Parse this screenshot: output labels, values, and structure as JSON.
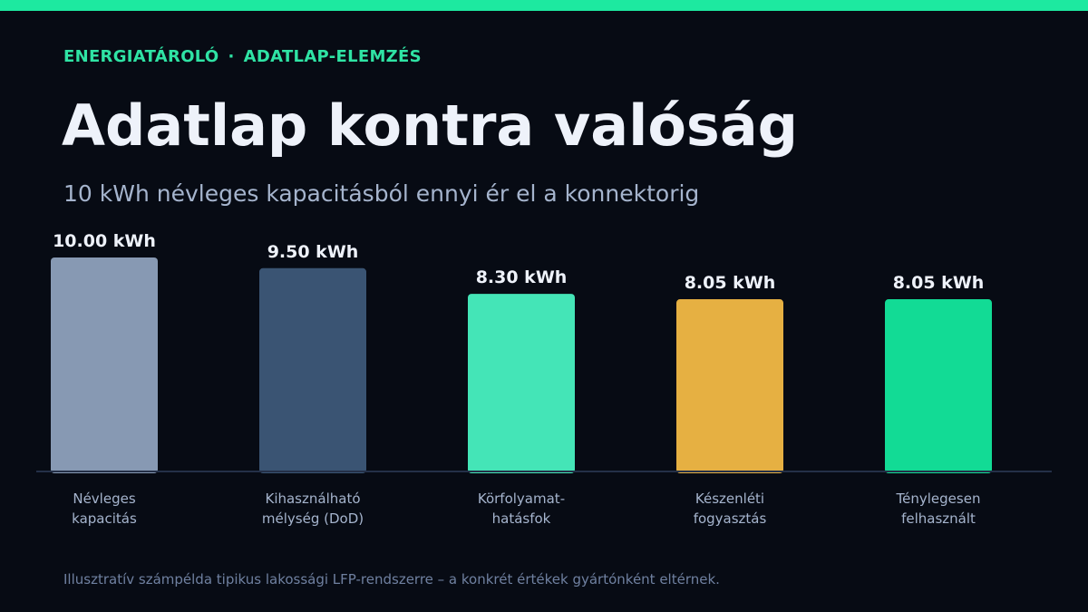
{
  "header": {
    "eyebrow_left": "ENERGIATÁROLÓ",
    "eyebrow_sep": "·",
    "eyebrow_right": "ADATLAP-ELEMZÉS",
    "title": "Adatlap kontra valóság",
    "subtitle": "10 kWh névleges kapacitásból ennyi ér el a konnektorig"
  },
  "footnote": "Illusztratív számpélda tipikus lakossági LFP-rendszerre – a konkrét értékek gyártónként eltérnek.",
  "colors": {
    "accent": "#1de9a0",
    "background": "#070b14"
  },
  "chart_data": {
    "type": "bar",
    "categories": [
      [
        "Névleges",
        "kapacitás"
      ],
      [
        "Kihasználható",
        "mélység (DoD)"
      ],
      [
        "Körfolyamat-",
        "hatásfok"
      ],
      [
        "Készenléti",
        "fogyasztás"
      ],
      [
        "Ténylegesen",
        "felhasznált"
      ]
    ],
    "values": [
      10.0,
      9.5,
      8.3,
      8.05,
      8.05
    ],
    "value_labels": [
      "10.00 kWh",
      "9.50 kWh",
      "8.30 kWh",
      "8.05 kWh",
      "8.05 kWh"
    ],
    "bar_colors": [
      "#8799b3",
      "#3a5473",
      "#44e5b7",
      "#e6b042",
      "#12db95"
    ],
    "unit": "kWh",
    "ylim": [
      0,
      10
    ],
    "grid": false,
    "legend": "none"
  }
}
